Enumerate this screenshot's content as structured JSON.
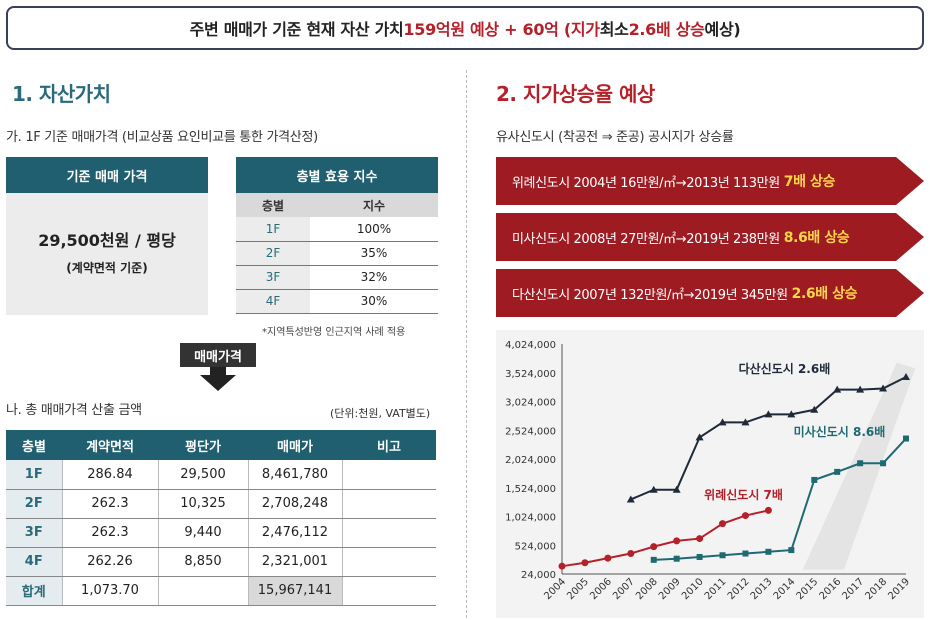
{
  "banner": {
    "part1": "주변 매매가 기준 현재 자산 가치 ",
    "part2": "159억원 예상 + 60억 (지가",
    "part3": " 최소 ",
    "part4": "2.6배 상승",
    "part5": " 예상)"
  },
  "left": {
    "title": "1. 자산가치",
    "sub_a": "가. 1F 기준 매매가격 (비교상품 요인비교를 통한 가격산정)",
    "price_box": {
      "header": "기준 매매 가격",
      "value": "29,500천원 / 평당",
      "caption": "(계약면적 기준)"
    },
    "utility": {
      "header": "층별 효용 지수",
      "columns": [
        "층별",
        "지수"
      ],
      "rows": [
        [
          "1F",
          "100%"
        ],
        [
          "2F",
          "35%"
        ],
        [
          "3F",
          "32%"
        ],
        [
          "4F",
          "30%"
        ]
      ],
      "note": "*지역특성반영 인근지역 사례 적용"
    },
    "arrow_label": "매매가격",
    "sub_c": "나. 총 매매가격 산출 금액",
    "unit_note": "(단위:천원, VAT별도)",
    "total_table": {
      "columns": [
        "층별",
        "계약면적",
        "평단가",
        "매매가",
        "비고"
      ],
      "rows": [
        [
          "1F",
          "286.84",
          "29,500",
          "8,461,780",
          ""
        ],
        [
          "2F",
          "262.3",
          "10,325",
          "2,708,248",
          ""
        ],
        [
          "3F",
          "262.3",
          "9,440",
          "2,476,112",
          ""
        ],
        [
          "4F",
          "262.26",
          "8,850",
          "2,321,001",
          ""
        ],
        [
          "합계",
          "1,073.70",
          "",
          "15,967,141",
          ""
        ]
      ]
    }
  },
  "right": {
    "title": "2. 지가상승율 예상",
    "sub_b": "유사신도시 (착공전 ⇒ 준공) 공시지가 상승률",
    "banners": [
      {
        "text": "위례신도시 2004년 16만원/㎡→2013년 113만원",
        "mult": "7배 상승"
      },
      {
        "text": "미사신도시 2008년 27만원/㎡→2019년 238만원",
        "mult": "8.6배 상승"
      },
      {
        "text": "다산신도시 2007년 132만원/㎡→2019년 345만원",
        "mult": "2.6배 상승"
      }
    ],
    "banner_color": "#9e1b22"
  },
  "chart_data": {
    "type": "line",
    "x": [
      2004,
      2005,
      2006,
      2007,
      2008,
      2009,
      2010,
      2011,
      2012,
      2013,
      2014,
      2015,
      2016,
      2017,
      2018,
      2019
    ],
    "ylim": [
      24000,
      4024000
    ],
    "yticks": [
      "4,024,000",
      "3,524,000",
      "3,024,000",
      "2,524,000",
      "2,024,000",
      "1,524,000",
      "1,024,000",
      "524,000",
      "24,000"
    ],
    "ytick_values": [
      4024000,
      3524000,
      3024000,
      2524000,
      2024000,
      1524000,
      1024000,
      524000,
      24000
    ],
    "series": [
      {
        "name": "다산신도시 2.6배",
        "color": "#1f2a3a",
        "x": [
          2007,
          2008,
          2009,
          2010,
          2011,
          2012,
          2013,
          2014,
          2015,
          2016,
          2017,
          2018,
          2019
        ],
        "values": [
          1320000,
          1490000,
          1490000,
          2400000,
          2660000,
          2660000,
          2800000,
          2800000,
          2880000,
          3230000,
          3230000,
          3250000,
          3450000
        ]
      },
      {
        "name": "미사신도시 8.6배",
        "color": "#1f6a72",
        "x": [
          2008,
          2009,
          2010,
          2011,
          2012,
          2013,
          2014,
          2015,
          2016,
          2017,
          2018,
          2019
        ],
        "values": [
          270000,
          290000,
          320000,
          350000,
          380000,
          410000,
          440000,
          1660000,
          1800000,
          1950000,
          1950000,
          2380000
        ]
      },
      {
        "name": "위례신도시 7배",
        "color": "#b5212a",
        "x": [
          2004,
          2005,
          2006,
          2007,
          2008,
          2009,
          2010,
          2011,
          2012,
          2013
        ],
        "values": [
          160000,
          220000,
          300000,
          380000,
          500000,
          600000,
          640000,
          900000,
          1040000,
          1130000
        ]
      }
    ],
    "grid": false
  }
}
